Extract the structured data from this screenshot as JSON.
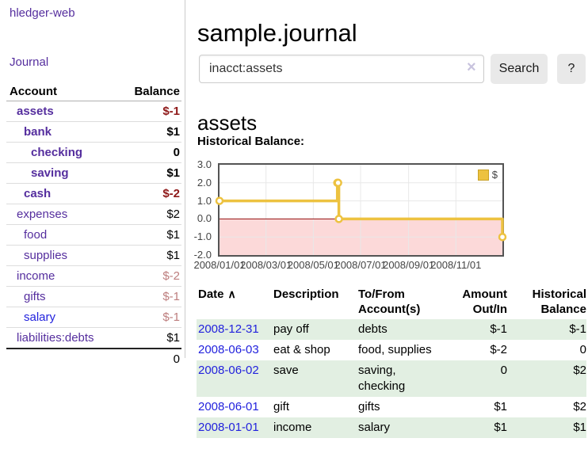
{
  "app": {
    "title": "hledger-web"
  },
  "sidebar": {
    "journal_label": "Journal",
    "accounts_table": {
      "headers": {
        "account": "Account",
        "balance": "Balance"
      },
      "rows": [
        {
          "name": "assets",
          "balance": "$-1",
          "depth": 1,
          "matched": true,
          "link": "purple",
          "balance_tone": "neg"
        },
        {
          "name": "bank",
          "balance": "$1",
          "depth": 2,
          "matched": true,
          "link": "purple",
          "balance_tone": "pos"
        },
        {
          "name": "checking",
          "balance": "0",
          "depth": 3,
          "matched": true,
          "link": "purple",
          "balance_tone": "pos"
        },
        {
          "name": "saving",
          "balance": "$1",
          "depth": 3,
          "matched": true,
          "link": "purple",
          "balance_tone": "pos"
        },
        {
          "name": "cash",
          "balance": "$-2",
          "depth": 2,
          "matched": true,
          "link": "purple",
          "balance_tone": "neg"
        },
        {
          "name": "expenses",
          "balance": "$2",
          "depth": 1,
          "matched": false,
          "link": "purple",
          "balance_tone": "pos"
        },
        {
          "name": "food",
          "balance": "$1",
          "depth": 2,
          "matched": false,
          "link": "purple",
          "balance_tone": "pos"
        },
        {
          "name": "supplies",
          "balance": "$1",
          "depth": 2,
          "matched": false,
          "link": "purple",
          "balance_tone": "pos"
        },
        {
          "name": "income",
          "balance": "$-2",
          "depth": 1,
          "matched": false,
          "link": "purple",
          "balance_tone": "negdim"
        },
        {
          "name": "gifts",
          "balance": "$-1",
          "depth": 2,
          "matched": false,
          "link": "purple",
          "balance_tone": "negdim"
        },
        {
          "name": "salary",
          "balance": "$-1",
          "depth": 2,
          "matched": false,
          "link": "blue",
          "balance_tone": "negdim"
        },
        {
          "name": "liabilities:debts",
          "balance": "$1",
          "depth": 1,
          "matched": false,
          "link": "purple",
          "balance_tone": "pos"
        }
      ],
      "total": "0"
    }
  },
  "main": {
    "title": "sample.journal",
    "search": {
      "value": "inacct:assets",
      "clear_icon": "×",
      "button_label": "Search",
      "help_label": "?"
    },
    "account_heading": "assets"
  },
  "chart_data": {
    "type": "line",
    "title": "Historical Balance:",
    "x_range": [
      "2008-01-01",
      "2008-12-31"
    ],
    "ylim": [
      -2,
      3
    ],
    "y_ticks": [
      3,
      2,
      1,
      0,
      -1,
      -2
    ],
    "x_ticks": [
      {
        "label": "2008/01/01",
        "date": "2008-01-01"
      },
      {
        "label": "2008/03/01",
        "date": "2008-03-01"
      },
      {
        "label": "2008/05/01",
        "date": "2008-05-01"
      },
      {
        "label": "2008/07/01",
        "date": "2008-07-01"
      },
      {
        "label": "2008/09/01",
        "date": "2008-09-01"
      },
      {
        "label": "2008/11/01",
        "date": "2008-11-01"
      }
    ],
    "series": [
      {
        "name": "$",
        "color": "#edc240",
        "points": [
          {
            "date": "2008-01-01",
            "value": 1
          },
          {
            "date": "2008-06-01",
            "value": 2
          },
          {
            "date": "2008-06-02",
            "value": 2
          },
          {
            "date": "2008-06-03",
            "value": 0
          },
          {
            "date": "2008-12-31",
            "value": -1
          }
        ]
      }
    ],
    "legend_position": "ne",
    "grid": true,
    "colors": {
      "negative_region": "#fcd9d9",
      "zero_line": "#941111",
      "grid": "#e8e8e8",
      "border": "#545454",
      "axis_text": "#444444"
    }
  },
  "register": {
    "headers": {
      "date": "Date",
      "description": "Description",
      "accounts": "To/From Account(s)",
      "amount": "Amount Out/In",
      "balance": "Historical Balance"
    },
    "sort_icon": "∧",
    "rows": [
      {
        "date": "2008-12-31",
        "description": "pay off",
        "accounts": "debts",
        "amount": "$-1",
        "amount_negative": true,
        "balance": "$-1",
        "balance_negative": true,
        "shaded": true
      },
      {
        "date": "2008-06-03",
        "description": "eat & shop",
        "accounts": "food, supplies",
        "amount": "$-2",
        "amount_negative": true,
        "balance": "0",
        "balance_negative": false,
        "shaded": false
      },
      {
        "date": "2008-06-02",
        "description": "save",
        "accounts": "saving, checking",
        "amount": "0",
        "amount_negative": false,
        "balance": "$2",
        "balance_negative": false,
        "shaded": true
      },
      {
        "date": "2008-06-01",
        "description": "gift",
        "accounts": "gifts",
        "amount": "$1",
        "amount_negative": false,
        "balance": "$2",
        "balance_negative": false,
        "shaded": false
      },
      {
        "date": "2008-01-01",
        "description": "income",
        "accounts": "salary",
        "amount": "$1",
        "amount_negative": false,
        "balance": "$1",
        "balance_negative": false,
        "shaded": true
      }
    ]
  }
}
